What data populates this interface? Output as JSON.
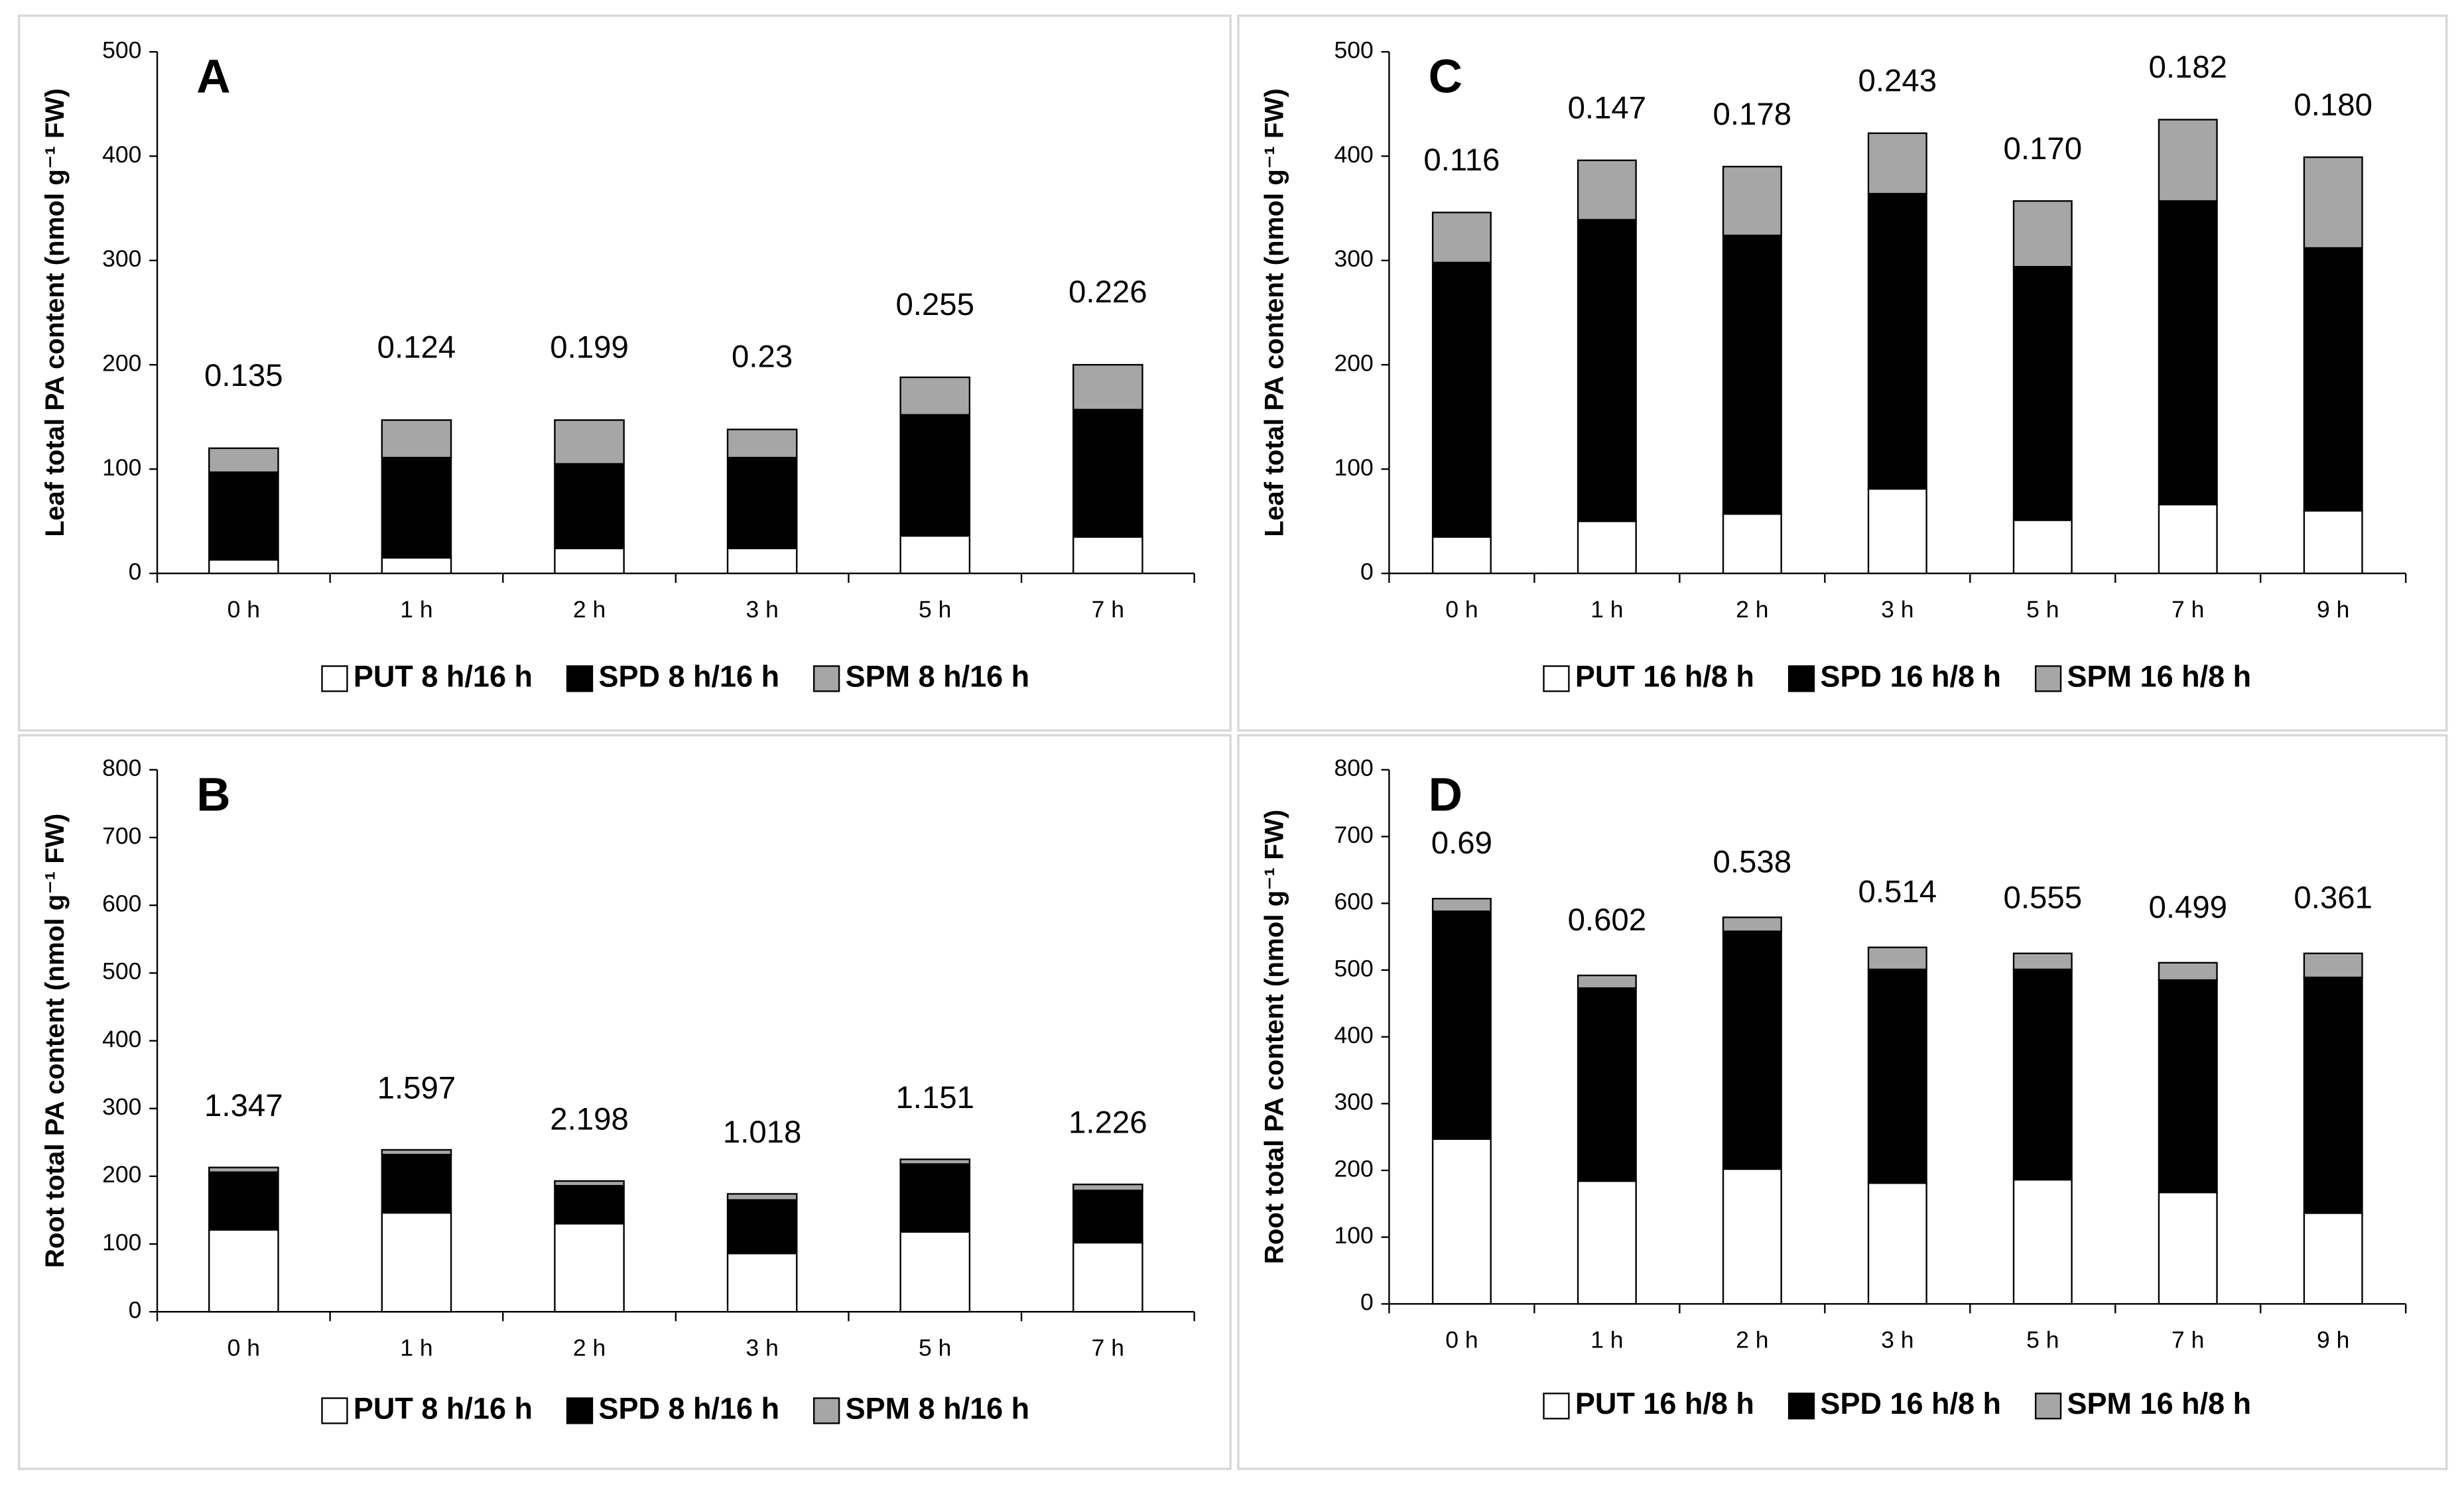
{
  "chart_data": [
    {
      "type": "bar",
      "stacked": true,
      "panel_label": "A",
      "y_label": "Leaf total PA content (nmol g⁻¹ FW)",
      "categories": [
        "0 h",
        "1 h",
        "2 h",
        "3 h",
        "5 h",
        "7 h"
      ],
      "series": [
        {
          "name": "PUT 8 h/16 h",
          "color": "#ffffff",
          "values": [
            13,
            15,
            24,
            24,
            36,
            35
          ]
        },
        {
          "name": "SPD 8 h/16 h",
          "color": "#000000",
          "values": [
            84,
            96,
            81,
            87,
            116,
            122
          ]
        },
        {
          "name": "SPM 8 h/16 h",
          "color": "#a6a6a6",
          "values": [
            23,
            36,
            42,
            27,
            36,
            43
          ]
        }
      ],
      "annotations": [
        "0.135",
        "0.124",
        "0.199",
        "0.23",
        "0.255",
        "0.226"
      ],
      "ylim": [
        0,
        500
      ],
      "yticks": [
        0,
        100,
        200,
        300,
        400,
        500
      ]
    },
    {
      "type": "bar",
      "stacked": true,
      "panel_label": "B",
      "y_label": "Root total PA content (nmol g⁻¹ FW)",
      "categories": [
        "0 h",
        "1 h",
        "2 h",
        "3 h",
        "5 h",
        "7 h"
      ],
      "series": [
        {
          "name": "PUT 8 h/16 h",
          "color": "#ffffff",
          "values": [
            121,
            146,
            130,
            86,
            118,
            102
          ]
        },
        {
          "name": "SPD 8 h/16 h",
          "color": "#000000",
          "values": [
            85,
            86,
            56,
            79,
            100,
            77
          ]
        },
        {
          "name": "SPM 8 h/16 h",
          "color": "#a6a6a6",
          "values": [
            7,
            7,
            7,
            9,
            7,
            9
          ]
        }
      ],
      "annotations": [
        "1.347",
        "1.597",
        "2.198",
        "1.018",
        "1.151",
        "1.226"
      ],
      "ylim": [
        0,
        800
      ],
      "yticks": [
        0,
        100,
        200,
        300,
        400,
        500,
        600,
        700,
        800
      ]
    },
    {
      "type": "bar",
      "stacked": true,
      "panel_label": "C",
      "y_label": "Leaf total PA content (nmol g⁻¹ FW)",
      "categories": [
        "0 h",
        "1 h",
        "2 h",
        "3 h",
        "5 h",
        "7 h",
        "9 h"
      ],
      "series": [
        {
          "name": "PUT 16 h/8 h",
          "color": "#ffffff",
          "values": [
            35,
            50,
            57,
            81,
            51,
            66,
            60
          ]
        },
        {
          "name": "SPD 16 h/8 h",
          "color": "#000000",
          "values": [
            263,
            289,
            267,
            283,
            243,
            291,
            252
          ]
        },
        {
          "name": "SPM 16 h/8 h",
          "color": "#a6a6a6",
          "values": [
            48,
            57,
            66,
            58,
            63,
            78,
            87
          ]
        }
      ],
      "annotations": [
        "0.116",
        "0.147",
        "0.178",
        "0.243",
        "0.170",
        "0.182",
        "0.180"
      ],
      "ylim": [
        0,
        500
      ],
      "yticks": [
        0,
        100,
        200,
        300,
        400,
        500
      ]
    },
    {
      "type": "bar",
      "stacked": true,
      "panel_label": "D",
      "y_label": "Root total PA content (nmol g⁻¹ FW)",
      "categories": [
        "0 h",
        "1 h",
        "2 h",
        "3 h",
        "5 h",
        "7 h",
        "9 h"
      ],
      "series": [
        {
          "name": "PUT 16 h/8 h",
          "color": "#ffffff",
          "values": [
            247,
            184,
            202,
            181,
            186,
            167,
            136
          ]
        },
        {
          "name": "SPD 16 h/8 h",
          "color": "#000000",
          "values": [
            341,
            289,
            356,
            320,
            315,
            318,
            353
          ]
        },
        {
          "name": "SPM 16 h/8 h",
          "color": "#a6a6a6",
          "values": [
            19,
            19,
            21,
            33,
            24,
            26,
            36
          ]
        }
      ],
      "annotations": [
        "0.69",
        "0.602",
        "0.538",
        "0.514",
        "0.555",
        "0.499",
        "0.361"
      ],
      "ylim": [
        0,
        800
      ],
      "yticks": [
        0,
        100,
        200,
        300,
        400,
        500,
        600,
        700,
        800
      ]
    }
  ]
}
